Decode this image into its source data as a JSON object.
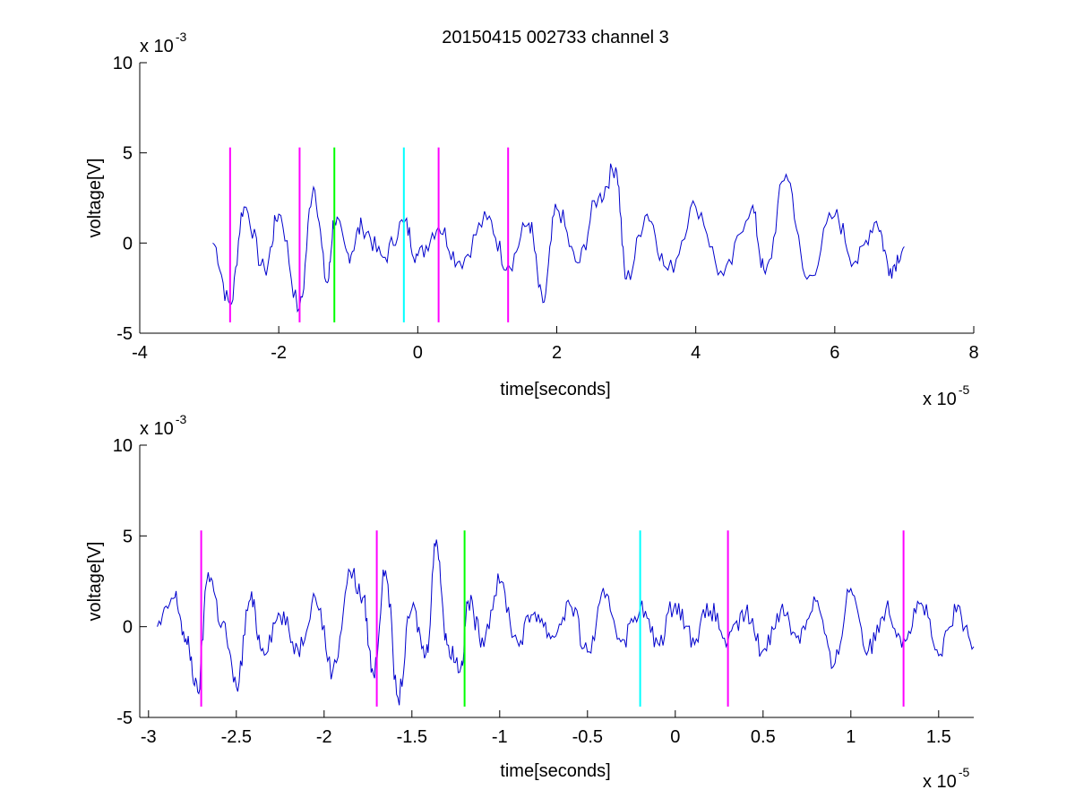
{
  "title": "20150415 002733 channel 3",
  "chart_data": [
    {
      "type": "line",
      "title": "20150415 002733 channel 3",
      "xlabel": "time[seconds]",
      "ylabel": "voltage[V]",
      "x_multiplier": "x 10",
      "x_exponent": "-5",
      "y_multiplier": "x 10",
      "y_exponent": "-3",
      "xlim": [
        -4,
        8
      ],
      "ylim": [
        -5,
        10
      ],
      "xticks": [
        -4,
        -2,
        0,
        2,
        4,
        6,
        8
      ],
      "xtick_labels": [
        "-4",
        "-2",
        "0",
        "2",
        "4",
        "6",
        "8"
      ],
      "yticks": [
        -5,
        0,
        5,
        10
      ],
      "ytick_labels": [
        "-5",
        "0",
        "5",
        "10"
      ],
      "grid": false,
      "series": [
        {
          "color": "#0000cc",
          "x": [
            -2.95,
            -2.7,
            -2.5,
            -2.2,
            -2.0,
            -1.7,
            -1.5,
            -1.3,
            -1.2,
            -1.0,
            -0.8,
            -0.5,
            -0.2,
            0.0,
            0.3,
            0.6,
            1.0,
            1.3,
            1.6,
            1.8,
            2.0,
            2.3,
            2.6,
            2.85,
            3.0,
            3.3,
            3.6,
            4.0,
            4.4,
            4.8,
            5.0,
            5.3,
            5.6,
            6.0,
            6.3,
            6.6,
            6.8,
            7.0
          ],
          "y": [
            0.0,
            -3.4,
            2.0,
            -1.5,
            1.6,
            -3.6,
            3.1,
            -2.2,
            1.3,
            -0.6,
            0.9,
            -0.8,
            1.1,
            -0.7,
            0.9,
            -1.0,
            1.3,
            -1.2,
            1.1,
            -3.3,
            1.9,
            -1.1,
            2.5,
            4.2,
            -2.0,
            1.6,
            -1.5,
            2.0,
            -1.8,
            1.9,
            -1.7,
            3.8,
            -2.0,
            1.5,
            -1.0,
            1.2,
            -1.4,
            -0.2
          ]
        }
      ],
      "markers": [
        {
          "x": -2.7,
          "color": "#ff00ff"
        },
        {
          "x": -1.7,
          "color": "#ff00ff"
        },
        {
          "x": -1.2,
          "color": "#00ff00"
        },
        {
          "x": -0.2,
          "color": "#00ffff"
        },
        {
          "x": 0.3,
          "color": "#ff00ff"
        },
        {
          "x": 1.3,
          "color": "#ff00ff"
        }
      ],
      "marker_ylim": [
        -4.4,
        5.3
      ]
    },
    {
      "type": "line",
      "xlabel": "time[seconds]",
      "ylabel": "voltage[V]",
      "x_multiplier": "x 10",
      "x_exponent": "-5",
      "y_multiplier": "x 10",
      "y_exponent": "-3",
      "xlim": [
        -3.05,
        1.7
      ],
      "ylim": [
        -5,
        10
      ],
      "xticks": [
        -3,
        -2.5,
        -2,
        -1.5,
        -1,
        -0.5,
        0,
        0.5,
        1,
        1.5
      ],
      "xtick_labels": [
        "-3",
        "-2.5",
        "-2",
        "-1.5",
        "-1",
        "-0.5",
        "0",
        "0.5",
        "1",
        "1.5"
      ],
      "yticks": [
        -5,
        0,
        5,
        10
      ],
      "ytick_labels": [
        "-5",
        "0",
        "5",
        "10"
      ],
      "grid": false,
      "series": [
        {
          "color": "#0000cc",
          "x": [
            -2.95,
            -2.85,
            -2.78,
            -2.72,
            -2.66,
            -2.58,
            -2.5,
            -2.42,
            -2.35,
            -2.25,
            -2.15,
            -2.05,
            -1.95,
            -1.85,
            -1.78,
            -1.72,
            -1.65,
            -1.58,
            -1.5,
            -1.42,
            -1.36,
            -1.3,
            -1.22,
            -1.18,
            -1.1,
            -1.0,
            -0.9,
            -0.8,
            -0.7,
            -0.6,
            -0.5,
            -0.4,
            -0.3,
            -0.2,
            -0.1,
            0.0,
            0.1,
            0.2,
            0.3,
            0.4,
            0.5,
            0.6,
            0.7,
            0.8,
            0.9,
            1.0,
            1.1,
            1.2,
            1.3,
            1.4,
            1.5,
            1.6,
            1.7
          ],
          "y": [
            0.0,
            1.6,
            -1.0,
            -3.6,
            3.0,
            0.2,
            -3.3,
            1.5,
            -1.2,
            0.6,
            -1.2,
            1.6,
            -2.4,
            3.0,
            1.6,
            -2.6,
            3.1,
            -3.9,
            1.0,
            -1.5,
            4.8,
            -1.0,
            -2.2,
            1.4,
            -0.6,
            2.4,
            -0.8,
            0.8,
            -0.5,
            1.2,
            -1.4,
            1.6,
            -0.7,
            1.0,
            -0.9,
            1.3,
            -0.6,
            0.9,
            -0.8,
            0.7,
            -1.3,
            0.9,
            -0.5,
            1.4,
            -2.2,
            2.1,
            -1.3,
            1.0,
            -0.6,
            1.3,
            -1.6,
            0.8,
            -1.1
          ]
        }
      ],
      "markers": [
        {
          "x": -2.7,
          "color": "#ff00ff"
        },
        {
          "x": -1.7,
          "color": "#ff00ff"
        },
        {
          "x": -1.2,
          "color": "#00ff00"
        },
        {
          "x": -0.2,
          "color": "#00ffff"
        },
        {
          "x": 0.3,
          "color": "#ff00ff"
        },
        {
          "x": 1.3,
          "color": "#ff00ff"
        }
      ],
      "marker_ylim": [
        -4.4,
        5.3
      ]
    }
  ]
}
